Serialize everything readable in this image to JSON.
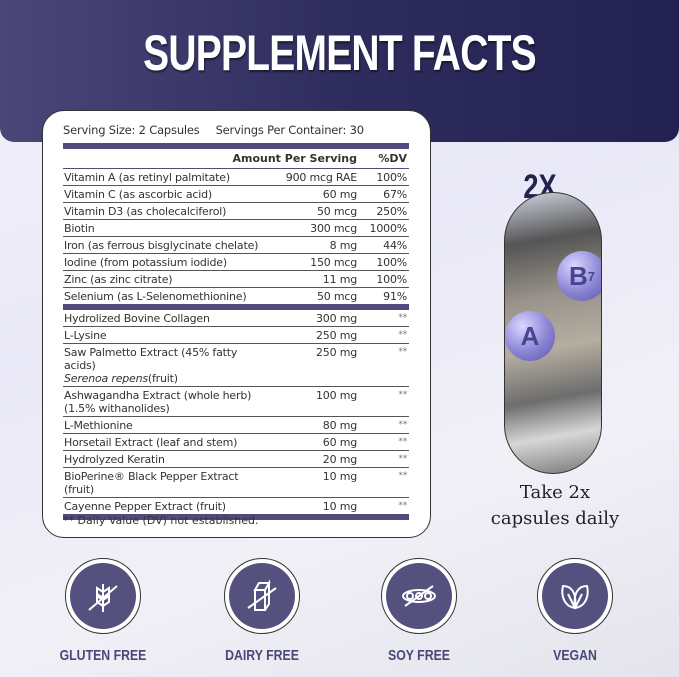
{
  "title": "SUPPLEMENT FACTS",
  "serving": {
    "size": "Serving Size: 2 Capsules",
    "per_container": "Servings Per Container: 30"
  },
  "table": {
    "headers": {
      "amount": "Amount Per Serving",
      "dv": "%DV"
    },
    "vitamins": [
      {
        "name": "Vitamin A (as retinyl palmitate)",
        "amount": "900 mcg RAE",
        "dv": "100%"
      },
      {
        "name": "Vitamin C (as ascorbic acid)",
        "amount": "60 mg",
        "dv": "67%"
      },
      {
        "name": "Vitamin D3 (as cholecalciferol)",
        "amount": "50 mcg",
        "dv": "250%"
      },
      {
        "name": "Biotin",
        "amount": "300 mcg",
        "dv": "1000%"
      },
      {
        "name": "Iron (as ferrous bisglycinate chelate)",
        "amount": "8 mg",
        "dv": "44%"
      },
      {
        "name": "Iodine (from potassium iodide)",
        "amount": "150 mcg",
        "dv": "100%"
      },
      {
        "name": "Zinc (as zinc citrate)",
        "amount": "11 mg",
        "dv": "100%"
      },
      {
        "name": "Selenium (as L-Selenomethionine)",
        "amount": "50 mcg",
        "dv": "91%"
      }
    ],
    "others": [
      {
        "name": "Hydrolized Bovine Collagen",
        "amount": "300 mg",
        "dv": "**"
      },
      {
        "name": "L-Lysine",
        "amount": "250 mg",
        "dv": "**"
      },
      {
        "name": "Saw Palmetto Extract (45% fatty acids)",
        "name2_italic": "Serenoa repens",
        "name2_rest": "(fruit)",
        "amount": "250 mg",
        "dv": "**"
      },
      {
        "name": "Ashwagandha Extract (whole herb)",
        "name2": "(1.5% withanolides)",
        "amount": "100 mg",
        "dv": "**"
      },
      {
        "name": "L-Methionine",
        "amount": "80 mg",
        "dv": "**"
      },
      {
        "name": "Horsetail Extract (leaf and stem)",
        "amount": "60 mg",
        "dv": "**"
      },
      {
        "name": "Hydrolyzed Keratin",
        "amount": "20 mg",
        "dv": "**"
      },
      {
        "name": "BioPerine® Black Pepper Extract (fruit)",
        "amount": "10 mg",
        "dv": "**"
      },
      {
        "name": "Cayenne Pepper Extract (fruit)",
        "amount": "10 mg",
        "dv": "**"
      }
    ],
    "footnote": "** Daily Value (DV) not established."
  },
  "dosage": {
    "multiplier": "2X",
    "ball_a": "A",
    "ball_b": "B",
    "ball_b_sub": "7",
    "instruction_line1": "Take 2x",
    "instruction_line2": "capsules daily"
  },
  "badges": [
    {
      "label": "GLUTEN FREE",
      "icon": "wheat-crossed-icon"
    },
    {
      "label": "DAIRY FREE",
      "icon": "milk-carton-crossed-icon"
    },
    {
      "label": "SOY FREE",
      "icon": "soybean-crossed-icon"
    },
    {
      "label": "VEGAN",
      "icon": "leaves-icon"
    }
  ],
  "colors": {
    "brand": "#4f4c7c",
    "header": "#2f2d5e",
    "text": "#333333"
  }
}
